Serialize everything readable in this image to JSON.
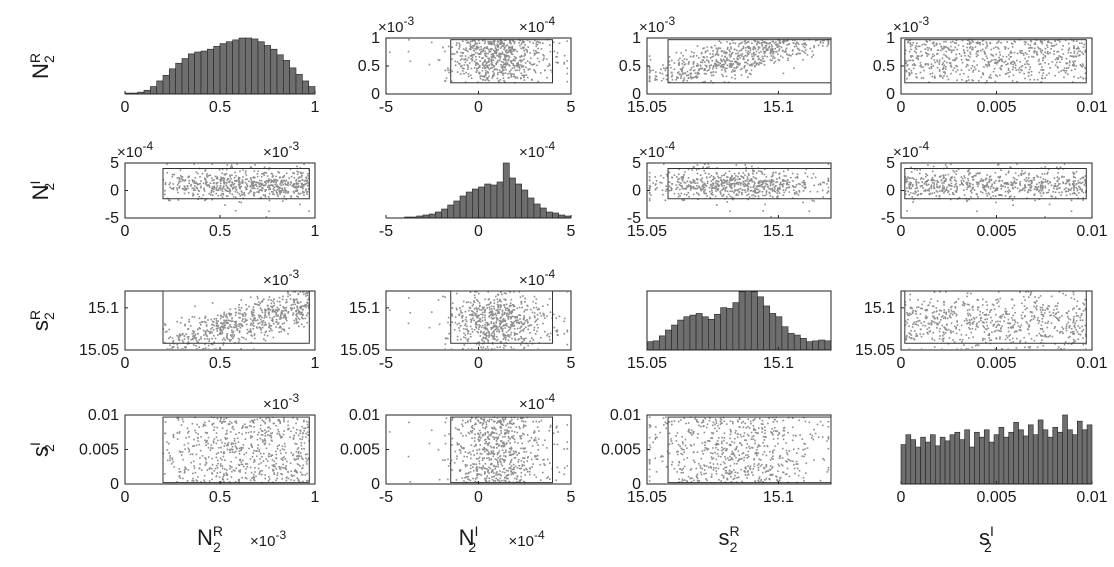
{
  "variables": [
    {
      "base": "N",
      "sub": "2",
      "sup": "R"
    },
    {
      "base": "N",
      "sub": "2",
      "sup": "I"
    },
    {
      "base": "s",
      "sub": "2",
      "sup": "R"
    },
    {
      "base": "s",
      "sub": "2",
      "sup": "I"
    }
  ],
  "bottom_multipliers": [
    {
      "base": "×10",
      "exp": "-3"
    },
    {
      "base": "×10",
      "exp": "-4"
    },
    {
      "base": "",
      "exp": ""
    },
    {
      "base": "",
      "exp": ""
    }
  ],
  "chart_data": {
    "type": "scatter",
    "layout": "scatter-plot matrix (4×4); histograms on diagonal, scatter plots off-diagonal, rectangles mark sampled region",
    "axes": [
      {
        "name": "N2R",
        "range": [
          0,
          1
        ],
        "ticks": [
          0,
          0.5,
          1
        ],
        "tick_labels": [
          "0",
          "0.5",
          "1"
        ],
        "multiplier": "×10^-3",
        "box": [
          0.2,
          0.97
        ]
      },
      {
        "name": "N2I",
        "range": [
          -5,
          5
        ],
        "ticks": [
          -5,
          0,
          5
        ],
        "tick_labels": [
          "-5",
          "0",
          "5"
        ],
        "multiplier": "×10^-4",
        "box": [
          -1.5,
          4
        ]
      },
      {
        "name": "s2R",
        "range": [
          15.05,
          15.12
        ],
        "ticks": [
          15.05,
          15.1
        ],
        "tick_labels": [
          "15.05",
          "15.1"
        ],
        "multiplier": "",
        "box": [
          15.058,
          15.12
        ]
      },
      {
        "name": "s2I",
        "range": [
          0,
          0.01
        ],
        "ticks": [
          0,
          0.005,
          0.01
        ],
        "tick_labels": [
          "0",
          "0.005",
          "0.01"
        ],
        "multiplier": "",
        "box": [
          0.0002,
          0.0097
        ]
      }
    ],
    "histograms": [
      {
        "variable": "N2R",
        "bin_edges_start": 0,
        "bin_width": 0.0333,
        "counts": [
          1,
          1,
          2,
          4,
          8,
          14,
          20,
          27,
          33,
          38,
          43,
          45,
          46,
          48,
          51,
          54,
          56,
          58,
          60,
          60,
          59,
          56,
          52,
          48,
          42,
          36,
          28,
          21,
          14,
          8
        ]
      },
      {
        "variable": "N2I",
        "bin_edges_start": -5,
        "bin_width": 0.333,
        "counts": [
          0,
          0,
          0,
          1,
          1,
          2,
          3,
          4,
          6,
          9,
          13,
          17,
          22,
          26,
          29,
          31,
          34,
          33,
          36,
          55,
          40,
          34,
          28,
          20,
          14,
          10,
          6,
          5,
          3,
          2
        ]
      },
      {
        "variable": "s2R",
        "bin_edges_start": 15.05,
        "bin_width": 0.00233,
        "counts": [
          10,
          11,
          17,
          24,
          30,
          36,
          40,
          42,
          44,
          40,
          37,
          43,
          51,
          50,
          57,
          70,
          71,
          70,
          64,
          53,
          44,
          40,
          28,
          20,
          18,
          14,
          10,
          11,
          12,
          11
        ]
      },
      {
        "variable": "s2I",
        "bin_edges_start": 0,
        "bin_width": 0.000263,
        "counts": [
          32,
          40,
          36,
          30,
          38,
          34,
          40,
          31,
          38,
          35,
          40,
          42,
          36,
          44,
          30,
          42,
          38,
          44,
          34,
          40,
          46,
          38,
          42,
          50,
          44,
          39,
          48,
          40,
          52,
          44,
          38,
          46,
          42,
          56,
          44,
          40,
          51,
          44,
          48
        ]
      }
    ],
    "scatter_trends": [
      {
        "x": "N2R",
        "y": "s2R",
        "relation": "positive",
        "approx": "s2R ≈ 15.057 + 0.05·N2R"
      }
    ],
    "n_points_per_panel": 650
  }
}
